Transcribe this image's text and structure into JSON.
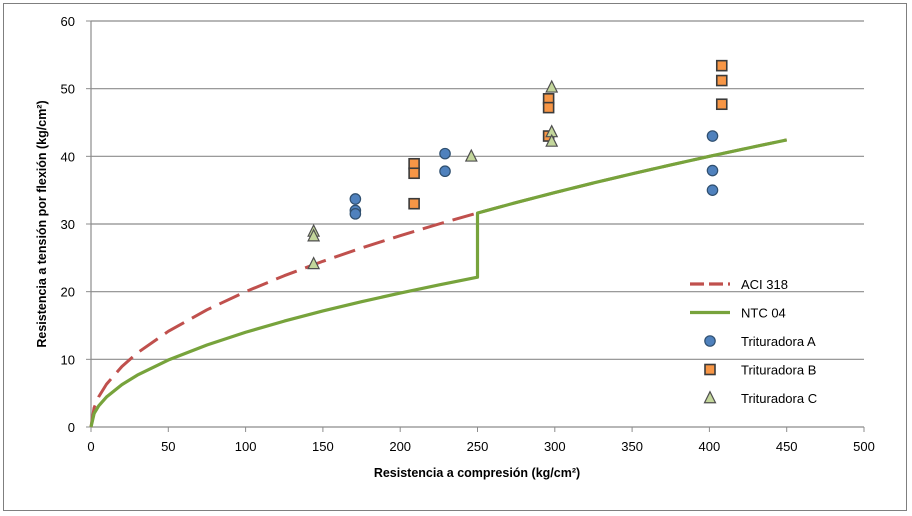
{
  "chart_data": {
    "type": "scatter",
    "xlabel": "Resistencia a compresión (kg/cm²)",
    "ylabel": "Resistencia a tensión por flexión (kg/cm²)",
    "xlim": [
      0,
      500
    ],
    "ylim": [
      0,
      60
    ],
    "xticks": [
      0,
      50,
      100,
      150,
      200,
      250,
      300,
      350,
      400,
      450,
      500
    ],
    "yticks": [
      0,
      10,
      20,
      30,
      40,
      50,
      60
    ],
    "grid": "horizontal",
    "legend_position": "right",
    "series": [
      {
        "name": "ACI 318",
        "kind": "line",
        "style": "dashed",
        "color": "#c0504d",
        "x": [
          0,
          2,
          5,
          10,
          20,
          30,
          50,
          75,
          100,
          125,
          150,
          175,
          200,
          225,
          250,
          275,
          300,
          325,
          350,
          375,
          400,
          425,
          450
        ],
        "y": [
          0,
          2.83,
          4.47,
          6.32,
          8.94,
          10.95,
          14.14,
          17.32,
          20.0,
          22.36,
          24.49,
          26.46,
          28.28,
          30.0,
          31.62,
          33.17,
          34.64,
          36.06,
          37.42,
          38.73,
          40.0,
          41.23,
          42.43
        ]
      },
      {
        "name": "NTC 04",
        "kind": "line",
        "style": "solid",
        "color": "#77a33c",
        "x": [
          0,
          2,
          5,
          10,
          20,
          30,
          50,
          75,
          100,
          125,
          150,
          175,
          200,
          225,
          250,
          250,
          275,
          300,
          325,
          350,
          375,
          400,
          425,
          450
        ],
        "y": [
          0,
          1.98,
          3.13,
          4.43,
          6.26,
          7.67,
          9.9,
          12.12,
          14.0,
          15.65,
          17.15,
          18.52,
          19.8,
          21.0,
          22.14,
          31.62,
          33.17,
          34.64,
          36.06,
          37.42,
          38.73,
          40.0,
          41.23,
          42.43
        ]
      },
      {
        "name": "Trituradora A",
        "kind": "points",
        "marker": "circle",
        "fill": "#4f81bd",
        "stroke": "#2f4f6f",
        "x": [
          171,
          171,
          171,
          229,
          229,
          402,
          402,
          402
        ],
        "y": [
          33.7,
          32.0,
          31.5,
          40.4,
          37.8,
          43.0,
          37.9,
          35.0
        ]
      },
      {
        "name": "Trituradora B",
        "kind": "points",
        "marker": "square",
        "fill": "#f79646",
        "stroke": "#3b3b3b",
        "x": [
          209,
          209,
          209,
          296,
          296,
          296,
          408,
          408,
          408
        ],
        "y": [
          38.9,
          37.5,
          33.0,
          48.5,
          47.2,
          43.0,
          53.4,
          51.2,
          47.7
        ]
      },
      {
        "name": "Trituradora C",
        "kind": "points",
        "marker": "triangle",
        "fill": "#c3d69b",
        "stroke": "#4f4f4f",
        "x": [
          144,
          144,
          144,
          246,
          298,
          298,
          298
        ],
        "y": [
          28.9,
          28.2,
          24.1,
          40.0,
          50.2,
          43.6,
          42.2
        ]
      }
    ]
  }
}
